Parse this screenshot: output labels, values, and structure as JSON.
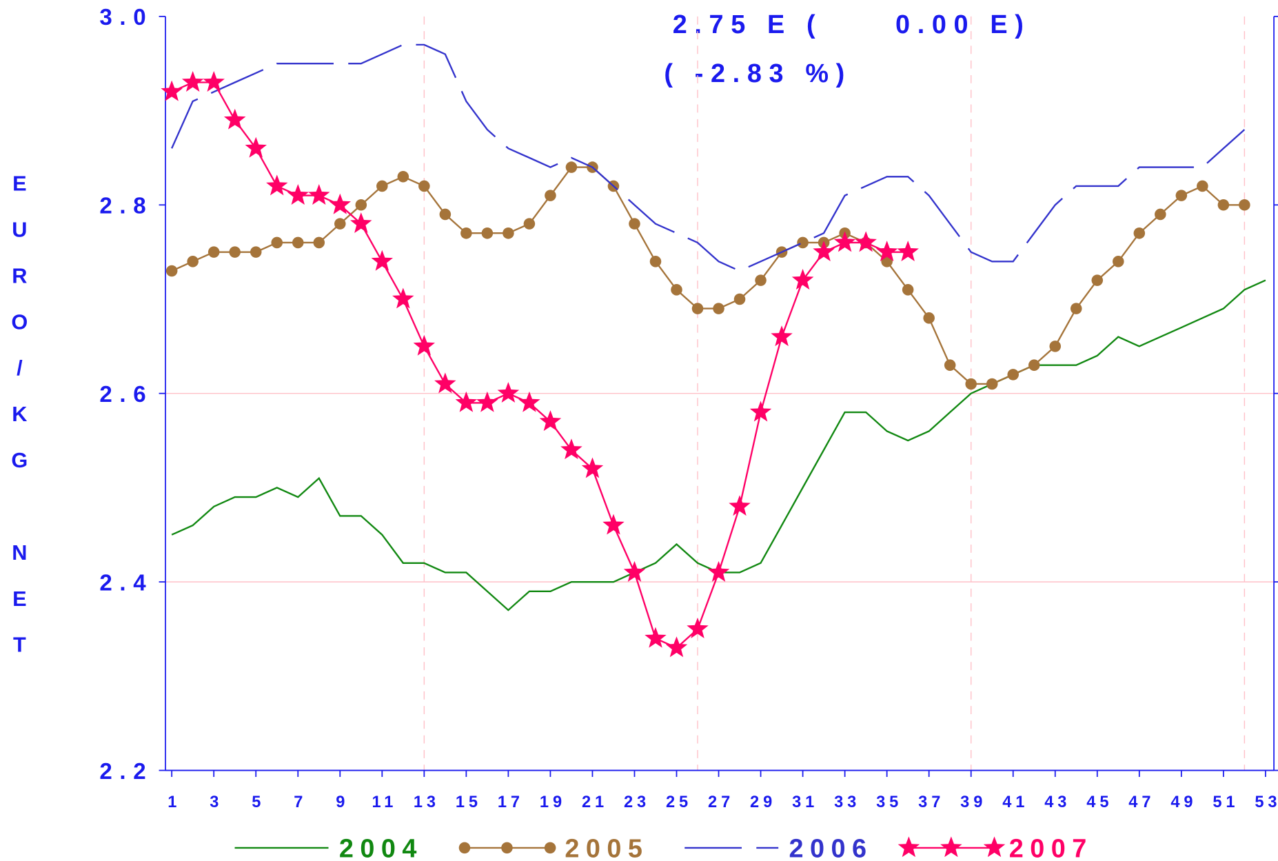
{
  "chart_data": {
    "type": "line",
    "annotations": [
      "2.75 E (     0.00 E)",
      "( -2.83 %)"
    ],
    "y_label": "EURO/KG NET",
    "x": [
      1,
      2,
      3,
      4,
      5,
      6,
      7,
      8,
      9,
      10,
      11,
      12,
      13,
      14,
      15,
      16,
      17,
      18,
      19,
      20,
      21,
      22,
      23,
      24,
      25,
      26,
      27,
      28,
      29,
      30,
      31,
      32,
      33,
      34,
      35,
      36,
      37,
      38,
      39,
      40,
      41,
      42,
      43,
      44,
      45,
      46,
      47,
      48,
      49,
      50,
      51,
      52,
      53
    ],
    "xlim": [
      0.7,
      53.4
    ],
    "xticks": [
      1,
      3,
      5,
      7,
      9,
      11,
      13,
      15,
      17,
      19,
      21,
      23,
      25,
      27,
      29,
      31,
      33,
      35,
      37,
      39,
      41,
      43,
      45,
      47,
      49,
      51,
      53
    ],
    "ylim": [
      2.2,
      3.0
    ],
    "yticks": [
      {
        "value": 2.2,
        "label": "2.2"
      },
      {
        "value": 2.4,
        "label": "2.4"
      },
      {
        "value": 2.6,
        "label": "2.6"
      },
      {
        "value": 2.8,
        "label": "2.8"
      },
      {
        "value": 3,
        "label": "3.0"
      }
    ],
    "hgrid": [
      2.2,
      2.4,
      2.6
    ],
    "vgrid": [
      13,
      26,
      39,
      52
    ],
    "series": [
      {
        "name": "2004",
        "color": "#118811",
        "style": "solid",
        "marker": "none",
        "values": [
          2.45,
          2.46,
          2.48,
          2.49,
          2.49,
          2.5,
          2.49,
          2.51,
          2.47,
          2.47,
          2.45,
          2.42,
          2.42,
          2.41,
          2.41,
          2.39,
          2.37,
          2.39,
          2.39,
          2.4,
          2.4,
          2.4,
          2.41,
          2.42,
          2.44,
          2.42,
          2.41,
          2.41,
          2.42,
          2.46,
          2.5,
          2.54,
          2.58,
          2.58,
          2.56,
          2.55,
          2.56,
          2.58,
          2.6,
          2.61,
          2.62,
          2.63,
          2.63,
          2.63,
          2.64,
          2.66,
          2.65,
          2.66,
          2.67,
          2.68,
          2.69,
          2.71,
          2.72
        ]
      },
      {
        "name": "2005",
        "color": "#a5743a",
        "style": "solid",
        "marker": "circle",
        "values": [
          2.73,
          2.74,
          2.75,
          2.75,
          2.75,
          2.76,
          2.76,
          2.76,
          2.78,
          2.8,
          2.82,
          2.83,
          2.82,
          2.79,
          2.77,
          2.77,
          2.77,
          2.78,
          2.81,
          2.84,
          2.84,
          2.82,
          2.78,
          2.74,
          2.71,
          2.69,
          2.69,
          2.7,
          2.72,
          2.75,
          2.76,
          2.76,
          2.77,
          2.76,
          2.74,
          2.71,
          2.68,
          2.63,
          2.61,
          2.61,
          2.62,
          2.63,
          2.65,
          2.69,
          2.72,
          2.74,
          2.77,
          2.79,
          2.81,
          2.82,
          2.8,
          2.8,
          null
        ]
      },
      {
        "name": "2006",
        "color": "#3333cc",
        "style": "dashed",
        "marker": "none",
        "values": [
          2.86,
          2.91,
          2.92,
          2.93,
          2.94,
          2.95,
          2.95,
          2.95,
          2.95,
          2.95,
          2.96,
          2.97,
          2.97,
          2.96,
          2.91,
          2.88,
          2.86,
          2.85,
          2.84,
          2.85,
          2.84,
          2.82,
          2.8,
          2.78,
          2.77,
          2.76,
          2.74,
          2.73,
          2.74,
          2.75,
          2.76,
          2.77,
          2.81,
          2.82,
          2.83,
          2.83,
          2.81,
          2.78,
          2.75,
          2.74,
          2.74,
          2.77,
          2.8,
          2.82,
          2.82,
          2.82,
          2.84,
          2.84,
          2.84,
          2.84,
          2.86,
          2.88,
          null
        ]
      },
      {
        "name": "2007",
        "color": "#ff0066",
        "style": "solid",
        "marker": "star",
        "values": [
          2.92,
          2.93,
          2.93,
          2.89,
          2.86,
          2.82,
          2.81,
          2.81,
          2.8,
          2.78,
          2.74,
          2.7,
          2.65,
          2.61,
          2.59,
          2.59,
          2.6,
          2.59,
          2.57,
          2.54,
          2.52,
          2.46,
          2.41,
          2.34,
          2.33,
          2.35,
          2.41,
          2.48,
          2.58,
          2.66,
          2.72,
          2.75,
          2.76,
          2.76,
          2.75,
          2.75,
          null,
          null,
          null,
          null,
          null,
          null,
          null,
          null,
          null,
          null,
          null,
          null,
          null,
          null,
          null,
          null,
          null
        ]
      }
    ]
  }
}
